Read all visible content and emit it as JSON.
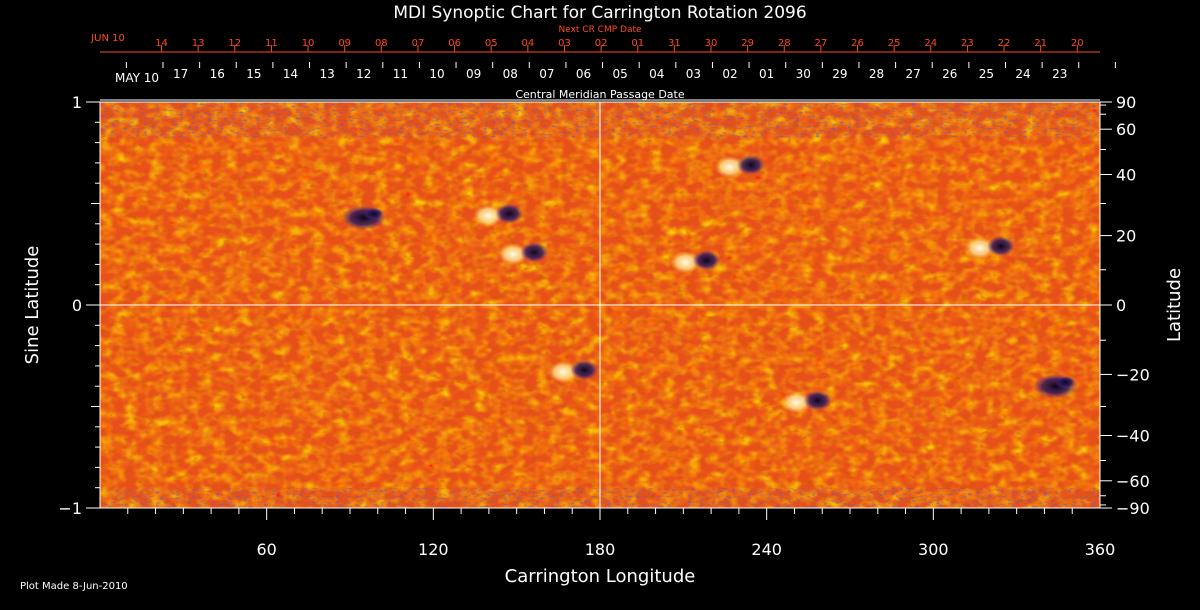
{
  "chart_data": {
    "type": "heatmap",
    "title": "MDI Synoptic Chart for Carrington Rotation 2096",
    "xlabel": "Carrington Longitude",
    "ylabel_left": "Sine Latitude",
    "ylabel_right": "Latitude",
    "xlim": [
      0,
      360
    ],
    "ylim": [
      -1,
      1
    ],
    "x_ticks": [
      60,
      120,
      180,
      240,
      300,
      360
    ],
    "y_ticks_left": [
      {
        "value": 1,
        "label": "1"
      },
      {
        "value": 0,
        "label": "0"
      },
      {
        "value": -1,
        "label": "−1"
      }
    ],
    "y_ticks_right": [
      90,
      60,
      40,
      20,
      0,
      -20,
      -40,
      -60,
      -90
    ],
    "right_tick_labels": [
      "90",
      "60",
      "40",
      "20",
      "0",
      "−20",
      "−40",
      "−60",
      "−90"
    ],
    "cmp_axis_label": "Central Meridian Passage Date",
    "cmp_start_label": "MAY 10",
    "cmp_days": [
      "17",
      "16",
      "15",
      "14",
      "13",
      "12",
      "11",
      "10",
      "09",
      "08",
      "07",
      "06",
      "05",
      "04",
      "03",
      "02",
      "01",
      "30",
      "29",
      "28",
      "27",
      "26",
      "25",
      "24",
      "23"
    ],
    "next_cr_label": "Next CR CMP Date",
    "next_cr_start_label": "JUN 10",
    "next_cr_days": [
      "14",
      "13",
      "12",
      "11",
      "10",
      "09",
      "08",
      "07",
      "06",
      "05",
      "04",
      "03",
      "02",
      "01",
      "31",
      "30",
      "29",
      "28",
      "27",
      "26",
      "25",
      "24",
      "23",
      "22",
      "21",
      "20"
    ],
    "grid_lines": {
      "longitude": [
        180
      ],
      "sine_latitude": [
        0
      ]
    },
    "active_regions": [
      {
        "lon": 143,
        "sinlat": 0.44,
        "polarity": "mixed"
      },
      {
        "lon": 170,
        "sinlat": -0.33,
        "polarity": "mixed"
      },
      {
        "lon": 214,
        "sinlat": 0.21,
        "polarity": "mixed"
      },
      {
        "lon": 230,
        "sinlat": 0.68,
        "polarity": "mixed"
      },
      {
        "lon": 254,
        "sinlat": -0.48,
        "polarity": "mixed"
      },
      {
        "lon": 320,
        "sinlat": 0.28,
        "polarity": "mixed"
      },
      {
        "lon": 344,
        "sinlat": -0.4,
        "polarity": "negative"
      },
      {
        "lon": 95,
        "sinlat": 0.43,
        "polarity": "negative"
      },
      {
        "lon": 152,
        "sinlat": 0.25,
        "polarity": "mixed"
      }
    ],
    "colors": {
      "background": "#000000",
      "field_base": "#e8501a",
      "positive": "#fff6c8",
      "negative": "#1a1040",
      "axis": "#ffffff",
      "next_cr": "#ff4a1a"
    }
  },
  "footer": {
    "plot_made": "Plot Made  8-Jun-2010"
  }
}
